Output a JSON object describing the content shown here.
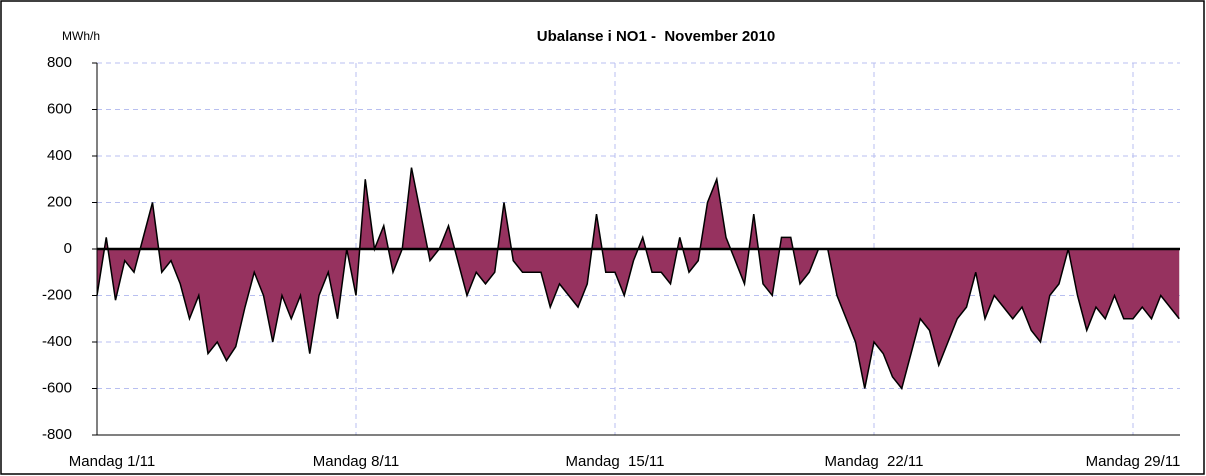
{
  "chart_data": {
    "type": "area",
    "title": "Ubalanse i NO1 -  November 2010",
    "y_unit": "MWh/h",
    "categories": [
      "Mandag 1/11",
      null,
      null,
      null,
      null,
      null,
      null,
      null,
      null,
      null,
      null,
      null,
      null,
      null,
      null,
      null,
      null,
      null,
      null,
      null,
      null,
      null,
      null,
      null,
      null,
      null,
      null,
      null,
      "Mandag 8/11",
      null,
      null,
      null,
      null,
      null,
      null,
      null,
      null,
      null,
      null,
      null,
      null,
      null,
      null,
      null,
      null,
      null,
      null,
      null,
      null,
      null,
      null,
      null,
      null,
      null,
      null,
      null,
      "Mandag  15/11",
      null,
      null,
      null,
      null,
      null,
      null,
      null,
      null,
      null,
      null,
      null,
      null,
      null,
      null,
      null,
      null,
      null,
      null,
      null,
      null,
      null,
      null,
      null,
      null,
      null,
      null,
      null,
      "Mandag  22/11",
      null,
      null,
      null,
      null,
      null,
      null,
      null,
      null,
      null,
      null,
      null,
      null,
      null,
      null,
      null,
      null,
      null,
      null,
      null,
      null,
      null,
      null,
      null,
      null,
      null,
      null,
      null,
      "Mandag 29/11",
      null,
      null,
      null,
      null,
      null
    ],
    "values": [
      -200,
      50,
      -220,
      -50,
      -100,
      50,
      200,
      -100,
      -50,
      -150,
      -300,
      -200,
      -450,
      -400,
      -480,
      -420,
      -250,
      -100,
      -200,
      -400,
      -200,
      -300,
      -200,
      -450,
      -200,
      -100,
      -300,
      0,
      -200,
      300,
      0,
      100,
      -100,
      0,
      350,
      150,
      -50,
      0,
      100,
      -50,
      -200,
      -100,
      -150,
      -100,
      200,
      -50,
      -100,
      -100,
      -100,
      -250,
      -150,
      -200,
      -250,
      -150,
      150,
      -100,
      -100,
      -200,
      -50,
      50,
      -100,
      -100,
      -150,
      50,
      -100,
      -50,
      200,
      300,
      50,
      -50,
      -150,
      150,
      -150,
      -200,
      50,
      50,
      -150,
      -100,
      0,
      0,
      -200,
      -300,
      -400,
      -600,
      -400,
      -450,
      -550,
      -600,
      -450,
      -300,
      -350,
      -500,
      -400,
      -300,
      -250,
      -100,
      -300,
      -200,
      -250,
      -300,
      -250,
      -350,
      -400,
      -200,
      -150,
      0,
      -200,
      -350,
      -250,
      -300,
      -200,
      -300,
      -300,
      -250,
      -300,
      -200,
      -250,
      -300
    ],
    "color": "#96325f",
    "line_color": "#000000",
    "ylim": [
      -800,
      800
    ],
    "yticks": [
      -800,
      -600,
      -400,
      -200,
      0,
      200,
      400,
      600,
      800
    ],
    "grid": true
  }
}
